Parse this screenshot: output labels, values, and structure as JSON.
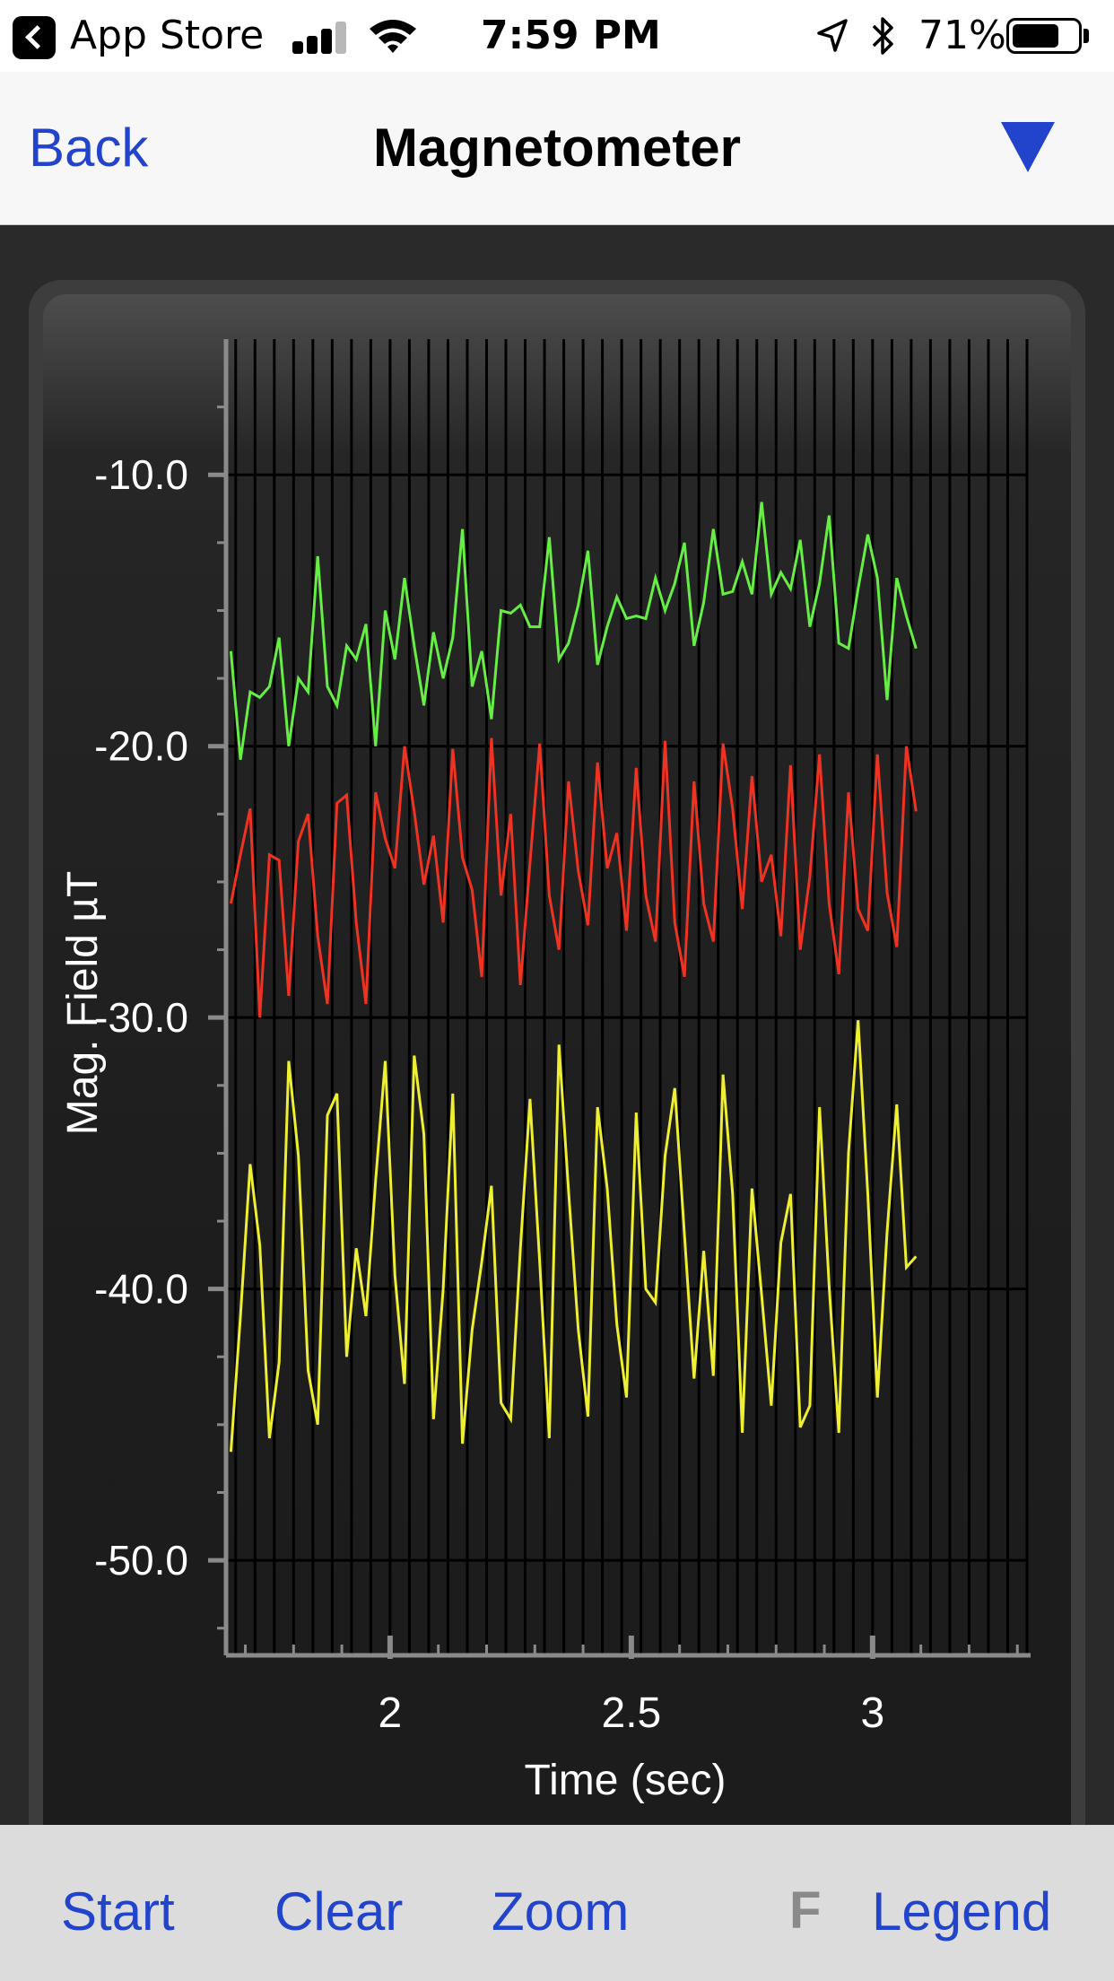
{
  "status_bar": {
    "back_app_label": "App Store",
    "time": "7:59 PM",
    "battery_percent": "71%",
    "battery_level": 0.71,
    "signal_bars_active": 3,
    "signal_bars_total": 4
  },
  "nav": {
    "back_label": "Back",
    "title": "Magnetometer",
    "menu_icon": "triangle-down-icon",
    "accent_color": "#2244cc"
  },
  "toolbar": {
    "start_label": "Start",
    "clear_label": "Clear",
    "zoom_label": "Zoom",
    "f_label": "F",
    "legend_label": "Legend"
  },
  "chart_data": {
    "type": "line",
    "xlabel": "Time (sec)",
    "ylabel": "Mag. Field µT",
    "xlim": [
      1.66,
      3.32
    ],
    "ylim": [
      -53.5,
      -5.0
    ],
    "x_ticks": [
      2,
      2.5,
      3
    ],
    "x_tick_labels": [
      "2",
      "2.5",
      "3"
    ],
    "y_ticks": [
      -10,
      -20,
      -30,
      -40,
      -50
    ],
    "y_tick_labels": [
      "-10.0",
      "-20.0",
      "-30.0",
      "-40.0",
      "-50.0"
    ],
    "x_start": 1.67,
    "x_step": 0.02,
    "grid": true,
    "series": [
      {
        "color": "#66ee44",
        "values": [
          -16.5,
          -20.5,
          -18,
          -18.2,
          -17.8,
          -16,
          -20,
          -17.5,
          -18,
          -13,
          -17.8,
          -18.5,
          -16.3,
          -16.8,
          -15.5,
          -20,
          -15,
          -16.8,
          -13.8,
          -16.3,
          -18.5,
          -15.8,
          -17.5,
          -16,
          -12,
          -17.8,
          -16.5,
          -19,
          -15,
          -15.1,
          -14.8,
          -15.6,
          -15.6,
          -12.3,
          -16.8,
          -16.2,
          -14.8,
          -12.8,
          -17,
          -15.6,
          -14.5,
          -15.3,
          -15.2,
          -15.3,
          -13.8,
          -15,
          -14,
          -12.5,
          -16.3,
          -14.7,
          -12,
          -14.4,
          -14.3,
          -13.2,
          -14.4,
          -11,
          -14.4,
          -13.6,
          -14.2,
          -12.4,
          -15.6,
          -14,
          -11.5,
          -16.2,
          -16.4,
          -14.2,
          -12.2,
          -13.8,
          -18.3,
          -13.8,
          -15.2,
          -16.4
        ]
      },
      {
        "color": "#ee3322",
        "values": [
          -25.8,
          -24,
          -22.3,
          -30,
          -24,
          -24.2,
          -29.2,
          -23.5,
          -22.5,
          -27,
          -29.5,
          -22.1,
          -21.8,
          -26.5,
          -29.5,
          -21.7,
          -23.4,
          -24.5,
          -20,
          -22.4,
          -25.1,
          -23.3,
          -26.5,
          -20.1,
          -24.1,
          -25.3,
          -28.5,
          -19.7,
          -25.5,
          -22.5,
          -28.8,
          -24.3,
          -19.9,
          -25.5,
          -27.5,
          -21.3,
          -24.6,
          -26.6,
          -20.6,
          -24.5,
          -23.2,
          -26.8,
          -20.8,
          -25.5,
          -27.2,
          -19.8,
          -26.5,
          -28.5,
          -21.3,
          -25.8,
          -27.2,
          -19.9,
          -22.3,
          -26,
          -21.1,
          -25,
          -24,
          -27,
          -20.7,
          -27.5,
          -24.8,
          -20.3,
          -25.8,
          -28.4,
          -21.7,
          -26,
          -26.8,
          -20.3,
          -25.4,
          -27.4,
          -20.0,
          -22.4
        ]
      },
      {
        "color": "#eeee33",
        "values": [
          -46,
          -41,
          -35.4,
          -38.4,
          -45.5,
          -42.7,
          -31.6,
          -35.1,
          -43,
          -45,
          -33.6,
          -32.8,
          -42.5,
          -38.5,
          -41,
          -36,
          -31.6,
          -39.5,
          -43.5,
          -31.4,
          -34.3,
          -44.8,
          -40,
          -32.8,
          -45.7,
          -41.5,
          -39,
          -36.2,
          -44.2,
          -44.8,
          -38.5,
          -33,
          -39,
          -45.5,
          -31,
          -36.4,
          -41.5,
          -44.7,
          -33.3,
          -36.3,
          -41.3,
          -44,
          -33.5,
          -40,
          -40.5,
          -35.1,
          -32.6,
          -38,
          -43.3,
          -38.6,
          -43.2,
          -32.1,
          -36.5,
          -45.3,
          -36.3,
          -40.2,
          -44.3,
          -38.3,
          -36.5,
          -45.1,
          -44.3,
          -33.3,
          -39.9,
          -45.3,
          -35,
          -30.1,
          -36.5,
          -44,
          -37.9,
          -33.2,
          -39.2,
          -38.8
        ]
      }
    ]
  }
}
